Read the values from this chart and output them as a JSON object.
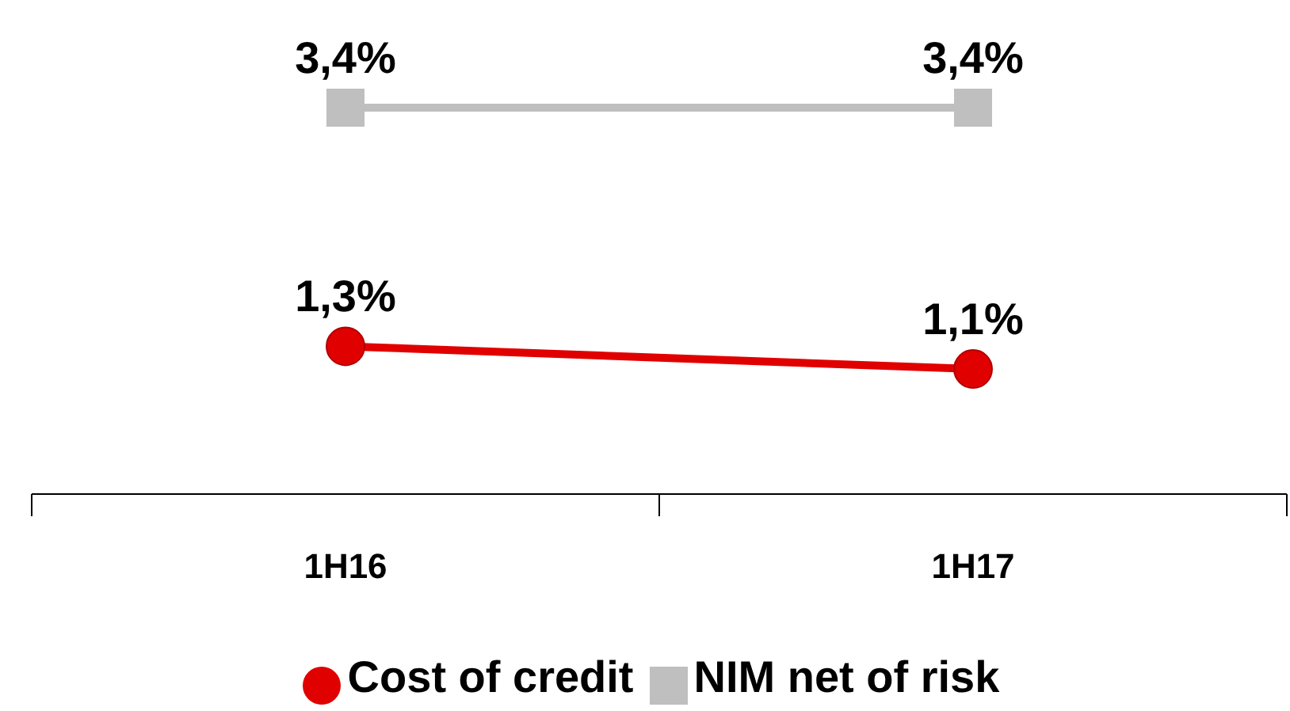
{
  "chart_data": {
    "type": "line",
    "categories": [
      "1H16",
      "1H17"
    ],
    "series": [
      {
        "name": "Cost of credit",
        "color": "#e00000",
        "marker": "circle",
        "values": [
          1.3,
          1.1
        ],
        "value_labels": [
          "1,3%",
          "1,1%"
        ]
      },
      {
        "name": "NIM net of risk",
        "color": "#bfbfbf",
        "marker": "square",
        "values": [
          3.4,
          3.4
        ],
        "value_labels": [
          "3,4%",
          "3,4%"
        ]
      }
    ],
    "legend": "bottom",
    "tick_labels": "x"
  }
}
